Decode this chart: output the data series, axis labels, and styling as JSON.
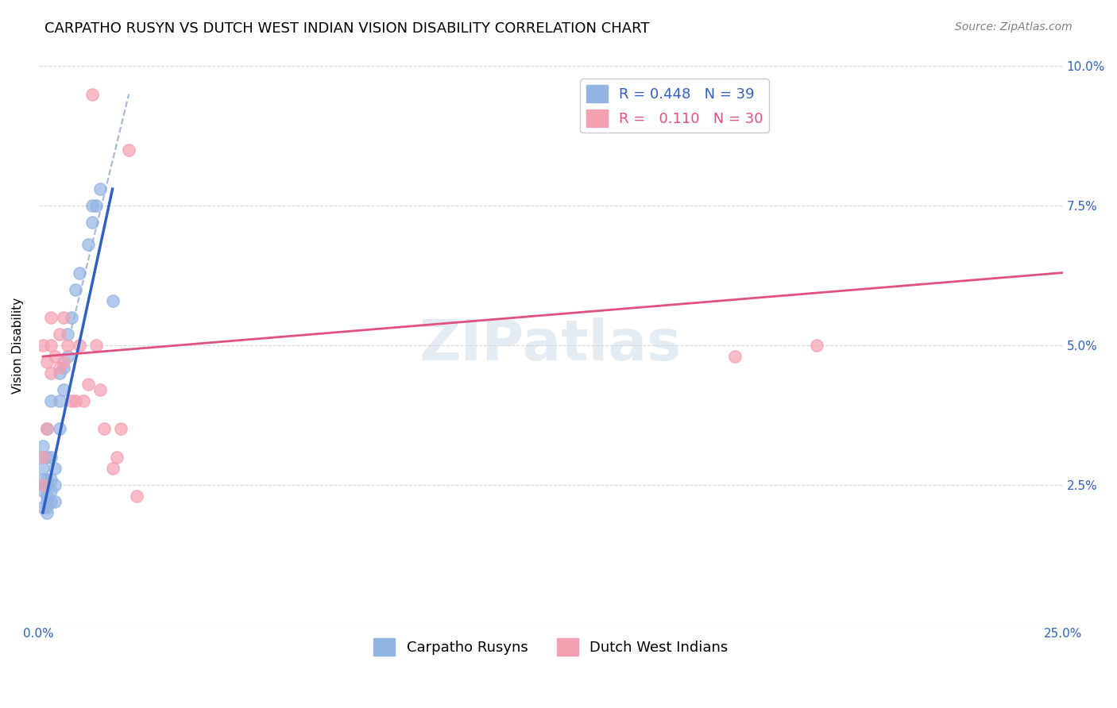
{
  "title": "CARPATHO RUSYN VS DUTCH WEST INDIAN VISION DISABILITY CORRELATION CHART",
  "source": "Source: ZipAtlas.com",
  "ylabel": "Vision Disability",
  "xlim": [
    0.0,
    0.25
  ],
  "ylim": [
    0.0,
    0.1
  ],
  "blue_R": 0.448,
  "blue_N": 39,
  "pink_R": 0.11,
  "pink_N": 30,
  "blue_color": "#92b4e3",
  "pink_color": "#f4a0b0",
  "blue_line_color": "#3060c0",
  "pink_line_color": "#e05080",
  "dashed_line_color": "#a0b8d8",
  "watermark": "ZIPatlas",
  "blue_scatter_x": [
    0.001,
    0.001,
    0.001,
    0.001,
    0.001,
    0.001,
    0.001,
    0.002,
    0.002,
    0.002,
    0.002,
    0.002,
    0.002,
    0.002,
    0.002,
    0.003,
    0.003,
    0.003,
    0.003,
    0.003,
    0.004,
    0.004,
    0.004,
    0.005,
    0.005,
    0.005,
    0.006,
    0.006,
    0.007,
    0.007,
    0.008,
    0.009,
    0.01,
    0.012,
    0.013,
    0.013,
    0.014,
    0.015,
    0.018
  ],
  "blue_scatter_y": [
    0.021,
    0.024,
    0.025,
    0.026,
    0.028,
    0.03,
    0.032,
    0.02,
    0.021,
    0.022,
    0.023,
    0.025,
    0.026,
    0.03,
    0.035,
    0.022,
    0.024,
    0.026,
    0.03,
    0.04,
    0.022,
    0.025,
    0.028,
    0.035,
    0.04,
    0.045,
    0.042,
    0.046,
    0.048,
    0.052,
    0.055,
    0.06,
    0.063,
    0.068,
    0.072,
    0.075,
    0.075,
    0.078,
    0.058
  ],
  "pink_scatter_x": [
    0.001,
    0.001,
    0.001,
    0.002,
    0.002,
    0.003,
    0.003,
    0.003,
    0.004,
    0.005,
    0.005,
    0.006,
    0.006,
    0.007,
    0.008,
    0.009,
    0.01,
    0.011,
    0.012,
    0.013,
    0.014,
    0.015,
    0.016,
    0.018,
    0.019,
    0.02,
    0.022,
    0.024,
    0.17,
    0.19
  ],
  "pink_scatter_y": [
    0.025,
    0.03,
    0.05,
    0.035,
    0.047,
    0.045,
    0.05,
    0.055,
    0.048,
    0.046,
    0.052,
    0.047,
    0.055,
    0.05,
    0.04,
    0.04,
    0.05,
    0.04,
    0.043,
    0.095,
    0.05,
    0.042,
    0.035,
    0.028,
    0.03,
    0.035,
    0.085,
    0.023,
    0.048,
    0.05
  ],
  "blue_line_x": [
    0.001,
    0.018
  ],
  "blue_line_y": [
    0.02,
    0.078
  ],
  "pink_line_x": [
    0.001,
    0.25
  ],
  "pink_line_y": [
    0.048,
    0.063
  ],
  "dashed_line_x": [
    0.008,
    0.022
  ],
  "dashed_line_y": [
    0.053,
    0.095
  ],
  "title_fontsize": 13,
  "axis_label_fontsize": 11,
  "tick_fontsize": 11,
  "legend_fontsize": 13,
  "source_fontsize": 10
}
